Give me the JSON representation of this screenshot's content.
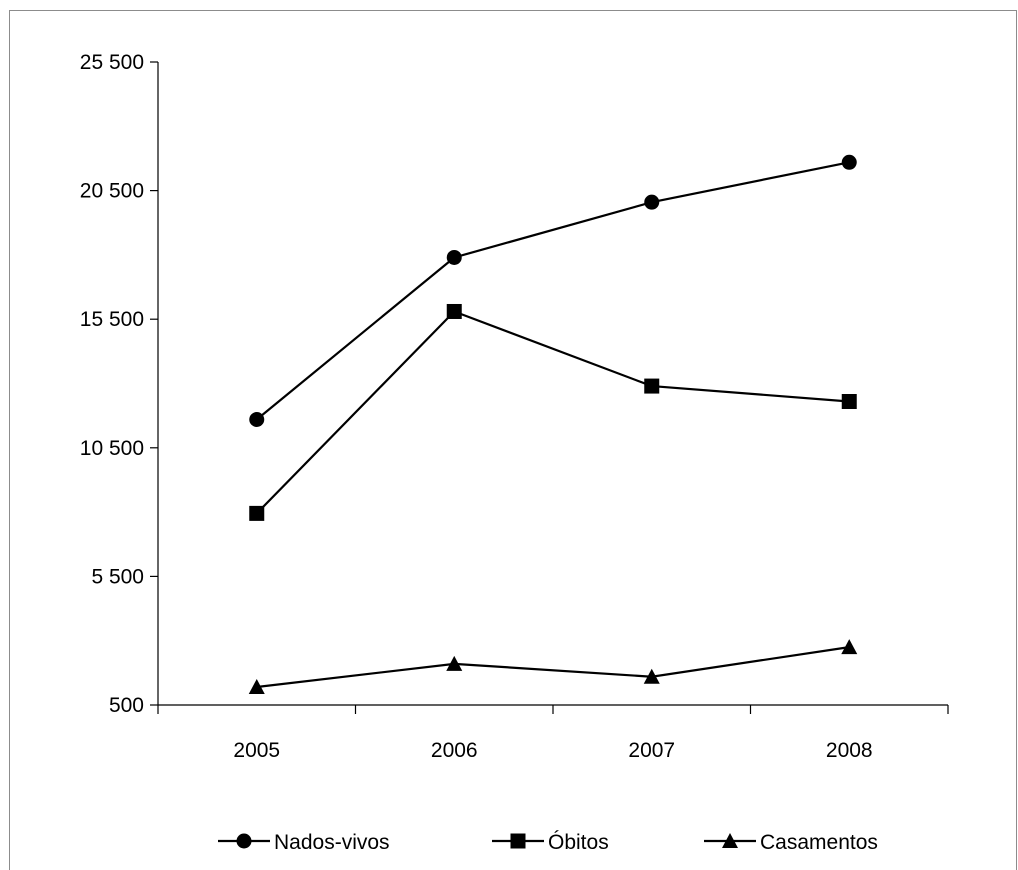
{
  "chart_data": {
    "type": "line",
    "x": [
      "2005",
      "2006",
      "2007",
      "2008"
    ],
    "series": [
      {
        "name": "Nados-vivos",
        "marker": "circle",
        "values": [
          11600,
          17900,
          20050,
          21600
        ]
      },
      {
        "name": "Óbitos",
        "marker": "square",
        "values": [
          7950,
          15800,
          12900,
          12300
        ]
      },
      {
        "name": "Casamentos",
        "marker": "triangle",
        "values": [
          1200,
          2100,
          1600,
          2750
        ]
      }
    ],
    "yticks": [
      500,
      5500,
      10500,
      15500,
      20500,
      25500
    ],
    "ytick_labels": [
      "500",
      "5 500",
      "10 500",
      "15 500",
      "20 500",
      "25 500"
    ],
    "ylim": [
      500,
      25500
    ],
    "grid": false,
    "legend_position": "bottom",
    "line_color": "#000000",
    "frame_color": "#8c8c8c"
  }
}
